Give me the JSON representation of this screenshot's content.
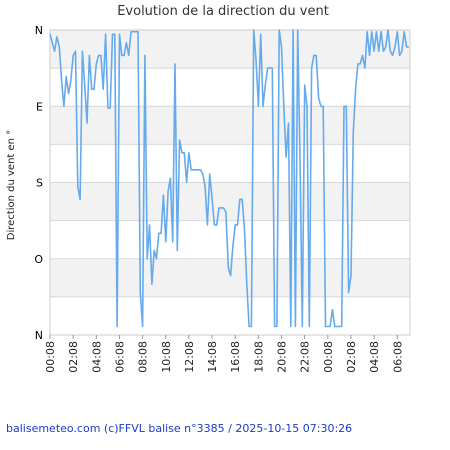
{
  "chart_data": {
    "type": "line",
    "title": "Evolution de la direction du vent",
    "xlabel": "",
    "ylabel": "Direction du vent en °",
    "ylim": [
      0,
      360
    ],
    "y_ticks": [
      {
        "value": 360,
        "label": "N"
      },
      {
        "value": 270,
        "label": "E"
      },
      {
        "value": 180,
        "label": "S"
      },
      {
        "value": 90,
        "label": "O"
      },
      {
        "value": 0,
        "label": "N"
      }
    ],
    "x_ticks": [
      "00:08",
      "02:08",
      "04:08",
      "06:08",
      "08:08",
      "10:08",
      "12:08",
      "14:08",
      "16:08",
      "18:08",
      "20:08",
      "22:08",
      "00:08",
      "02:08",
      "04:08",
      "06:08"
    ],
    "xlim": [
      0,
      31.1
    ],
    "grid": true,
    "band_color": "#f2f2f2",
    "line_color": "#66aaee",
    "series": [
      {
        "points": [
          [
            0.0,
            355
          ],
          [
            0.2,
            345
          ],
          [
            0.4,
            335
          ],
          [
            0.6,
            352
          ],
          [
            0.8,
            340
          ],
          [
            1.0,
            300
          ],
          [
            1.2,
            270
          ],
          [
            1.4,
            305
          ],
          [
            1.6,
            285
          ],
          [
            1.8,
            300
          ],
          [
            2.0,
            330
          ],
          [
            2.2,
            335
          ],
          [
            2.4,
            175
          ],
          [
            2.6,
            160
          ],
          [
            2.8,
            335
          ],
          [
            3.0,
            295
          ],
          [
            3.2,
            250
          ],
          [
            3.4,
            330
          ],
          [
            3.6,
            290
          ],
          [
            3.8,
            290
          ],
          [
            4.0,
            320
          ],
          [
            4.2,
            330
          ],
          [
            4.4,
            330
          ],
          [
            4.6,
            290
          ],
          [
            4.8,
            355
          ],
          [
            5.0,
            268
          ],
          [
            5.2,
            268
          ],
          [
            5.4,
            355
          ],
          [
            5.6,
            355
          ],
          [
            5.8,
            10
          ],
          [
            6.0,
            355
          ],
          [
            6.2,
            330
          ],
          [
            6.4,
            330
          ],
          [
            6.6,
            345
          ],
          [
            6.8,
            330
          ],
          [
            7.0,
            358
          ],
          [
            7.2,
            358
          ],
          [
            7.4,
            358
          ],
          [
            7.6,
            358
          ],
          [
            7.8,
            50
          ],
          [
            8.0,
            10
          ],
          [
            8.2,
            330
          ],
          [
            8.4,
            90
          ],
          [
            8.6,
            130
          ],
          [
            8.8,
            60
          ],
          [
            9.0,
            100
          ],
          [
            9.2,
            90
          ],
          [
            9.4,
            120
          ],
          [
            9.6,
            120
          ],
          [
            9.8,
            165
          ],
          [
            10.0,
            110
          ],
          [
            10.2,
            170
          ],
          [
            10.4,
            185
          ],
          [
            10.6,
            110
          ],
          [
            10.8,
            320
          ],
          [
            11.0,
            100
          ],
          [
            11.2,
            230
          ],
          [
            11.4,
            215
          ],
          [
            11.6,
            215
          ],
          [
            11.8,
            180
          ],
          [
            12.0,
            215
          ],
          [
            12.2,
            195
          ],
          [
            12.4,
            195
          ],
          [
            12.6,
            195
          ],
          [
            12.8,
            195
          ],
          [
            13.0,
            195
          ],
          [
            13.2,
            190
          ],
          [
            13.4,
            175
          ],
          [
            13.6,
            130
          ],
          [
            13.8,
            190
          ],
          [
            14.0,
            160
          ],
          [
            14.2,
            130
          ],
          [
            14.4,
            130
          ],
          [
            14.6,
            150
          ],
          [
            14.8,
            150
          ],
          [
            15.0,
            150
          ],
          [
            15.2,
            145
          ],
          [
            15.4,
            80
          ],
          [
            15.6,
            70
          ],
          [
            15.8,
            105
          ],
          [
            16.0,
            130
          ],
          [
            16.2,
            130
          ],
          [
            16.4,
            160
          ],
          [
            16.6,
            160
          ],
          [
            16.8,
            125
          ],
          [
            17.0,
            60
          ],
          [
            17.2,
            10
          ],
          [
            17.4,
            10
          ],
          [
            17.6,
            360
          ],
          [
            17.8,
            325
          ],
          [
            18.0,
            270
          ],
          [
            18.2,
            355
          ],
          [
            18.4,
            270
          ],
          [
            18.6,
            295
          ],
          [
            18.8,
            315
          ],
          [
            19.0,
            315
          ],
          [
            19.2,
            315
          ],
          [
            19.4,
            10
          ],
          [
            19.6,
            10
          ],
          [
            19.8,
            360
          ],
          [
            20.0,
            340
          ],
          [
            20.2,
            270
          ],
          [
            20.4,
            210
          ],
          [
            20.6,
            250
          ],
          [
            20.8,
            10
          ],
          [
            21.0,
            360
          ],
          [
            21.2,
            10
          ],
          [
            21.4,
            360
          ],
          [
            21.6,
            210
          ],
          [
            21.8,
            10
          ],
          [
            22.0,
            295
          ],
          [
            22.2,
            270
          ],
          [
            22.4,
            10
          ],
          [
            22.6,
            315
          ],
          [
            22.8,
            330
          ],
          [
            23.0,
            330
          ],
          [
            23.2,
            280
          ],
          [
            23.4,
            270
          ],
          [
            23.6,
            270
          ],
          [
            23.8,
            10
          ],
          [
            24.0,
            10
          ],
          [
            24.2,
            10
          ],
          [
            24.4,
            30
          ],
          [
            24.6,
            10
          ],
          [
            24.8,
            10
          ],
          [
            25.0,
            10
          ],
          [
            25.2,
            10
          ],
          [
            25.4,
            270
          ],
          [
            25.6,
            270
          ],
          [
            25.8,
            50
          ],
          [
            26.0,
            70
          ],
          [
            26.2,
            240
          ],
          [
            26.4,
            290
          ],
          [
            26.6,
            320
          ],
          [
            26.8,
            320
          ],
          [
            27.0,
            330
          ],
          [
            27.2,
            315
          ],
          [
            27.4,
            358
          ],
          [
            27.6,
            330
          ],
          [
            27.8,
            358
          ],
          [
            28.0,
            335
          ],
          [
            28.2,
            358
          ],
          [
            28.4,
            335
          ],
          [
            28.6,
            358
          ],
          [
            28.8,
            335
          ],
          [
            29.0,
            340
          ],
          [
            29.2,
            360
          ],
          [
            29.4,
            335
          ],
          [
            29.6,
            330
          ],
          [
            29.8,
            340
          ],
          [
            30.0,
            358
          ],
          [
            30.2,
            330
          ],
          [
            30.4,
            335
          ],
          [
            30.6,
            358
          ],
          [
            30.8,
            340
          ],
          [
            31.0,
            340
          ]
        ]
      }
    ]
  },
  "footer": {
    "text": "balisemeteo.com (c)FFVL balise n°3385 / 2025-10-15 07:30:26"
  }
}
